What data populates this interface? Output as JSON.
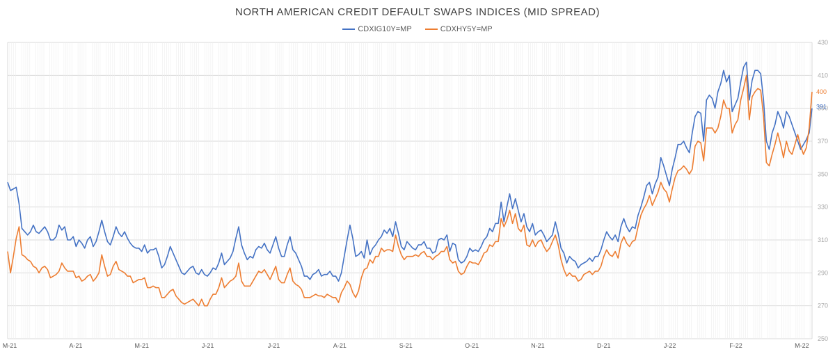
{
  "colors": {
    "ig": "#4472C4",
    "hy": "#ED7D31",
    "grid": "#D9D9D9",
    "axis": "#A6A6A6"
  },
  "chart_data": {
    "type": "line",
    "title": "NORTH AMERICAN CREDIT DEFAULT SWAPS INDICES (MID SPREAD)",
    "xlabel": "",
    "ylabel": "",
    "x_tick_labels": [
      "M-21",
      "A-21",
      "M-21",
      "J-21",
      "J-21",
      "A-21",
      "S-21",
      "O-21",
      "N-21",
      "D-21",
      "J-22",
      "F-22",
      "M-22"
    ],
    "y_ticks": [
      250,
      270,
      290,
      310,
      330,
      350,
      370,
      390,
      410,
      430
    ],
    "ylim": [
      250,
      430
    ],
    "grid": true,
    "legend_position": "top",
    "end_labels": {
      "ig": "391",
      "hy": "400"
    },
    "series": [
      {
        "name": "CDXIG10Y=MP",
        "color_key": "ig",
        "values": [
          345,
          340,
          341,
          342,
          332,
          317,
          315,
          313,
          315,
          319,
          315,
          314,
          316,
          318,
          315,
          310,
          310,
          312,
          319,
          316,
          318,
          310,
          310,
          312,
          306,
          310,
          308,
          305,
          310,
          312,
          306,
          309,
          315,
          322,
          315,
          309,
          307,
          312,
          318,
          314,
          312,
          315,
          311,
          308,
          306,
          305,
          305,
          303,
          307,
          302,
          304,
          304,
          305,
          300,
          293,
          295,
          300,
          306,
          302,
          298,
          294,
          290,
          289,
          291,
          293,
          294,
          290,
          289,
          292,
          289,
          288,
          290,
          293,
          292,
          296,
          302,
          295,
          297,
          299,
          303,
          311,
          318,
          307,
          302,
          298,
          300,
          299,
          304,
          306,
          305,
          308,
          304,
          302,
          307,
          312,
          305,
          300,
          300,
          307,
          312,
          304,
          302,
          298,
          294,
          288,
          288,
          286,
          289,
          290,
          292,
          288,
          289,
          289,
          291,
          288,
          288,
          285,
          290,
          300,
          310,
          319,
          311,
          300,
          301,
          303,
          299,
          310,
          301,
          305,
          307,
          310,
          312,
          316,
          314,
          317,
          312,
          321,
          314,
          306,
          304,
          309,
          307,
          305,
          304,
          307,
          307,
          309,
          305,
          305,
          302,
          303,
          310,
          311,
          310,
          313,
          303,
          308,
          307,
          298,
          296,
          297,
          300,
          305,
          303,
          304,
          303,
          306,
          310,
          312,
          317,
          315,
          320,
          320,
          333,
          321,
          330,
          338,
          329,
          335,
          328,
          321,
          326,
          318,
          315,
          320,
          313,
          315,
          316,
          313,
          309,
          311,
          313,
          321,
          314,
          305,
          302,
          296,
          300,
          298,
          297,
          293,
          295,
          296,
          297,
          299,
          297,
          300,
          300,
          304,
          310,
          315,
          312,
          310,
          313,
          309,
          318,
          323,
          318,
          315,
          318,
          317,
          325,
          330,
          336,
          343,
          345,
          338,
          344,
          348,
          360,
          355,
          349,
          343,
          353,
          360,
          368,
          368,
          370,
          366,
          363,
          375,
          385,
          388,
          387,
          370,
          395,
          398,
          396,
          390,
          400,
          405,
          413,
          406,
          410,
          388,
          392,
          396,
          406,
          415,
          418,
          395,
          407,
          413,
          413,
          411,
          395,
          370,
          365,
          375,
          380,
          388,
          384,
          378,
          388,
          385,
          380,
          375,
          370,
          365,
          368,
          371,
          375,
          390
        ]
      },
      {
        "name": "CDXHY5Y=MP",
        "color_key": "hy",
        "values": [
          303,
          290,
          300,
          311,
          318,
          301,
          300,
          298,
          297,
          294,
          293,
          290,
          293,
          294,
          292,
          287,
          288,
          289,
          291,
          296,
          293,
          291,
          291,
          291,
          287,
          288,
          285,
          286,
          288,
          289,
          285,
          287,
          290,
          301,
          294,
          288,
          289,
          294,
          297,
          292,
          291,
          290,
          288,
          288,
          284,
          285,
          286,
          286,
          287,
          281,
          281,
          282,
          281,
          281,
          275,
          275,
          277,
          279,
          280,
          276,
          274,
          272,
          271,
          272,
          273,
          274,
          272,
          270,
          274,
          270,
          270,
          274,
          277,
          277,
          281,
          287,
          281,
          283,
          285,
          286,
          288,
          296,
          285,
          282,
          282,
          282,
          285,
          288,
          291,
          290,
          292,
          289,
          286,
          290,
          294,
          286,
          284,
          284,
          289,
          293,
          285,
          283,
          282,
          280,
          275,
          275,
          275,
          276,
          277,
          276,
          276,
          275,
          277,
          276,
          275,
          275,
          272,
          278,
          281,
          285,
          283,
          278,
          275,
          279,
          287,
          292,
          293,
          298,
          296,
          300,
          300,
          305,
          303,
          304,
          304,
          303,
          313,
          306,
          301,
          298,
          300,
          300,
          300,
          301,
          300,
          302,
          303,
          300,
          300,
          298,
          300,
          301,
          303,
          303,
          306,
          298,
          296,
          297,
          291,
          289,
          290,
          294,
          297,
          296,
          296,
          295,
          298,
          302,
          303,
          307,
          306,
          309,
          309,
          323,
          318,
          322,
          328,
          320,
          326,
          317,
          315,
          319,
          307,
          306,
          310,
          306,
          309,
          310,
          306,
          303,
          305,
          309,
          313,
          307,
          298,
          292,
          288,
          290,
          288,
          288,
          285,
          286,
          289,
          290,
          291,
          289,
          291,
          291,
          294,
          300,
          304,
          301,
          300,
          303,
          299,
          308,
          312,
          308,
          306,
          309,
          310,
          318,
          325,
          329,
          332,
          337,
          331,
          335,
          339,
          345,
          341,
          339,
          333,
          341,
          348,
          352,
          353,
          355,
          353,
          350,
          353,
          367,
          370,
          369,
          358,
          378,
          378,
          378,
          375,
          378,
          385,
          395,
          390,
          390,
          375,
          380,
          383,
          395,
          402,
          410,
          383,
          397,
          400,
          402,
          401,
          385,
          357,
          355,
          362,
          368,
          375,
          368,
          360,
          370,
          364,
          362,
          368,
          374,
          367,
          362,
          366,
          378,
          400
        ]
      }
    ]
  }
}
